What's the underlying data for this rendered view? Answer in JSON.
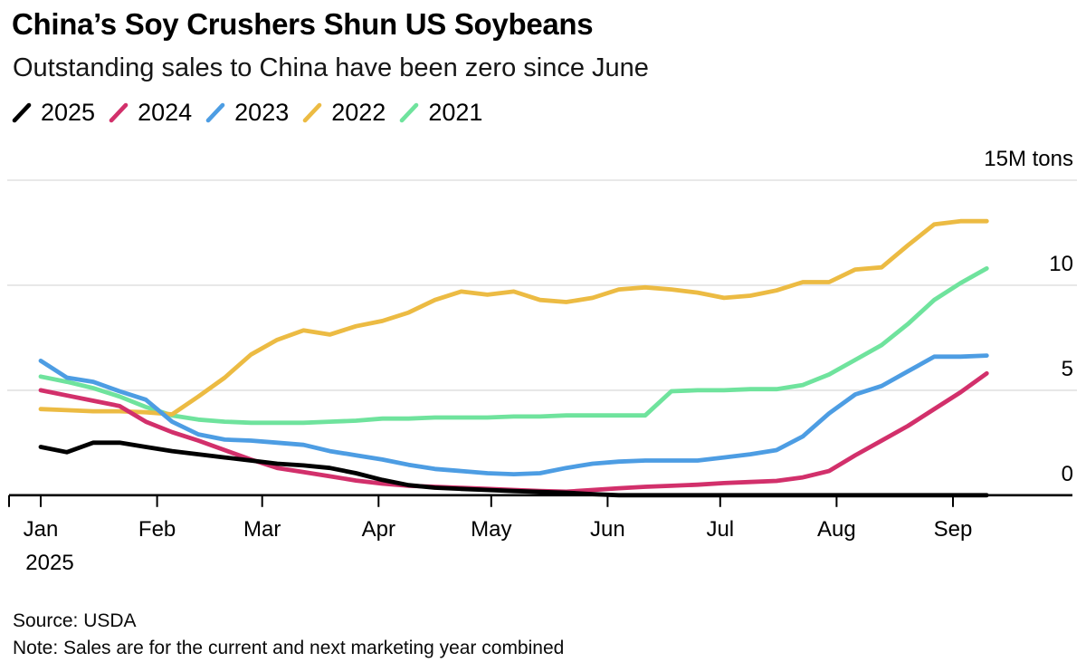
{
  "chart_data": {
    "type": "line",
    "title": "China’s Soy Crushers Shun US Soybeans",
    "subtitle": "Outstanding sales to China have been zero since June",
    "source": "Source: USDA",
    "note": "Note: Sales are for the current and next marketing year combined",
    "unit_label": "15M tons",
    "y_ticks": [
      0,
      5,
      10,
      15
    ],
    "ylim": [
      0,
      15
    ],
    "grid": "horizontal",
    "legend_position": "top-left",
    "x_axis_note": "weekly observations, days since Jan 1 2025",
    "x_ticks": [
      {
        "label": "Jan",
        "year_label": "2025",
        "day": 0
      },
      {
        "label": "Feb",
        "day": 31
      },
      {
        "label": "Mar",
        "day": 59
      },
      {
        "label": "Apr",
        "day": 90
      },
      {
        "label": "May",
        "day": 120
      },
      {
        "label": "Jun",
        "day": 151
      },
      {
        "label": "Jul",
        "day": 181
      },
      {
        "label": "Aug",
        "day": 212
      },
      {
        "label": "Sep",
        "day": 243
      }
    ],
    "x_days": [
      0,
      7,
      14,
      21,
      28,
      35,
      42,
      49,
      56,
      63,
      70,
      77,
      84,
      91,
      98,
      105,
      112,
      119,
      126,
      133,
      140,
      147,
      154,
      161,
      168,
      175,
      182,
      189,
      196,
      203,
      210,
      217,
      224,
      231,
      238,
      245,
      252
    ],
    "series": [
      {
        "name": "2025",
        "color": "#000000",
        "values": [
          2.3,
          2.05,
          2.5,
          2.5,
          2.3,
          2.1,
          1.95,
          1.8,
          1.65,
          1.5,
          1.42,
          1.3,
          1.05,
          0.73,
          0.48,
          0.36,
          0.3,
          0.25,
          0.2,
          0.16,
          0.12,
          0.05,
          0,
          0,
          0,
          0,
          0,
          0,
          0,
          0,
          0,
          0,
          0,
          0,
          0,
          0,
          0
        ]
      },
      {
        "name": "2024",
        "color": "#d2306b",
        "values": [
          5.0,
          4.75,
          4.5,
          4.25,
          3.5,
          3.0,
          2.6,
          2.15,
          1.7,
          1.3,
          1.1,
          0.9,
          0.7,
          0.55,
          0.45,
          0.4,
          0.35,
          0.3,
          0.25,
          0.2,
          0.17,
          0.25,
          0.33,
          0.4,
          0.45,
          0.5,
          0.58,
          0.63,
          0.68,
          0.85,
          1.15,
          1.9,
          2.6,
          3.3,
          4.1,
          4.9,
          5.8
        ]
      },
      {
        "name": "2023",
        "color": "#4d9de3",
        "values": [
          6.4,
          5.6,
          5.4,
          4.95,
          4.55,
          3.5,
          2.9,
          2.65,
          2.6,
          2.5,
          2.4,
          2.1,
          1.9,
          1.7,
          1.45,
          1.25,
          1.15,
          1.05,
          1.0,
          1.05,
          1.3,
          1.5,
          1.6,
          1.65,
          1.65,
          1.65,
          1.8,
          1.95,
          2.15,
          2.8,
          3.9,
          4.8,
          5.2,
          5.9,
          6.6,
          6.6,
          6.65
        ]
      },
      {
        "name": "2022",
        "color": "#ecbb43",
        "values": [
          4.1,
          4.05,
          4.0,
          4.0,
          3.95,
          3.85,
          4.7,
          5.6,
          6.7,
          7.4,
          7.85,
          7.65,
          8.05,
          8.3,
          8.7,
          9.3,
          9.7,
          9.55,
          9.7,
          9.3,
          9.2,
          9.4,
          9.8,
          9.9,
          9.8,
          9.65,
          9.4,
          9.5,
          9.75,
          10.15,
          10.15,
          10.75,
          10.85,
          11.9,
          12.9,
          13.05,
          13.05
        ]
      },
      {
        "name": "2021",
        "color": "#6fe39d",
        "values": [
          5.65,
          5.4,
          5.1,
          4.7,
          4.2,
          3.8,
          3.6,
          3.5,
          3.45,
          3.45,
          3.45,
          3.5,
          3.55,
          3.65,
          3.65,
          3.7,
          3.7,
          3.7,
          3.75,
          3.75,
          3.8,
          3.8,
          3.8,
          3.8,
          4.95,
          5.0,
          5.0,
          5.05,
          5.05,
          5.25,
          5.75,
          6.45,
          7.15,
          8.15,
          9.3,
          10.1,
          10.8
        ]
      }
    ],
    "style": {
      "gridline_color": "#e2e2e2",
      "axis_color": "#000000",
      "line_width": 4.8
    }
  }
}
